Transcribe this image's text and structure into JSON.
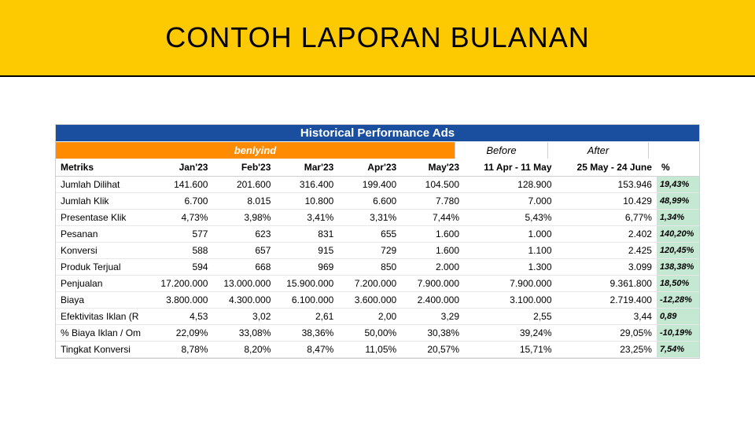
{
  "header": {
    "title": "CONTOH LAPORAN BULANAN"
  },
  "table": {
    "title": "Historical Performance Ads",
    "brand": "benlyind",
    "before_label": "Before",
    "after_label": "After",
    "columns": {
      "metric": "Metriks",
      "jan": "Jan'23",
      "feb": "Feb'23",
      "mar": "Mar'23",
      "apr": "Apr'23",
      "may": "May'23",
      "before": "11 Apr - 11 May",
      "after": "25 May - 24 June",
      "pct": "%"
    },
    "rows": [
      {
        "metric": "Jumlah Dilihat",
        "jan": "141.600",
        "feb": "201.600",
        "mar": "316.400",
        "apr": "199.400",
        "may": "104.500",
        "before": "128.900",
        "after": "153.946",
        "pct": "19,43%"
      },
      {
        "metric": "Jumlah Klik",
        "jan": "6.700",
        "feb": "8.015",
        "mar": "10.800",
        "apr": "6.600",
        "may": "7.780",
        "before": "7.000",
        "after": "10.429",
        "pct": "48,99%"
      },
      {
        "metric": "Presentase Klik",
        "jan": "4,73%",
        "feb": "3,98%",
        "mar": "3,41%",
        "apr": "3,31%",
        "may": "7,44%",
        "before": "5,43%",
        "after": "6,77%",
        "pct": "1,34%"
      },
      {
        "metric": "Pesanan",
        "jan": "577",
        "feb": "623",
        "mar": "831",
        "apr": "655",
        "may": "1.600",
        "before": "1.000",
        "after": "2.402",
        "pct": "140,20%"
      },
      {
        "metric": "Konversi",
        "jan": "588",
        "feb": "657",
        "mar": "915",
        "apr": "729",
        "may": "1.600",
        "before": "1.100",
        "after": "2.425",
        "pct": "120,45%"
      },
      {
        "metric": "Produk Terjual",
        "jan": "594",
        "feb": "668",
        "mar": "969",
        "apr": "850",
        "may": "2.000",
        "before": "1.300",
        "after": "3.099",
        "pct": "138,38%"
      },
      {
        "metric": "Penjualan",
        "jan": "17.200.000",
        "feb": "13.000.000",
        "mar": "15.900.000",
        "apr": "7.200.000",
        "may": "7.900.000",
        "before": "7.900.000",
        "after": "9.361.800",
        "pct": "18,50%"
      },
      {
        "metric": "Biaya",
        "jan": "3.800.000",
        "feb": "4.300.000",
        "mar": "6.100.000",
        "apr": "3.600.000",
        "may": "2.400.000",
        "before": "3.100.000",
        "after": "2.719.400",
        "pct": "-12,28%"
      },
      {
        "metric": "Efektivitas Iklan (R",
        "jan": "4,53",
        "feb": "3,02",
        "mar": "2,61",
        "apr": "2,00",
        "may": "3,29",
        "before": "2,55",
        "after": "3,44",
        "pct": "0,89"
      },
      {
        "metric": "% Biaya Iklan / Om",
        "jan": "22,09%",
        "feb": "33,08%",
        "mar": "38,36%",
        "apr": "50,00%",
        "may": "30,38%",
        "before": "39,24%",
        "after": "29,05%",
        "pct": "-10,19%"
      },
      {
        "metric": "Tingkat Konversi",
        "jan": "8,78%",
        "feb": "8,20%",
        "mar": "8,47%",
        "apr": "11,05%",
        "may": "20,57%",
        "before": "15,71%",
        "after": "23,25%",
        "pct": "7,54%"
      }
    ]
  },
  "colors": {
    "header_bg": "#fdc900",
    "title_bar": "#1a4fa0",
    "brand_bar": "#ff8c00",
    "pct_bg": "#c4e8d1"
  }
}
